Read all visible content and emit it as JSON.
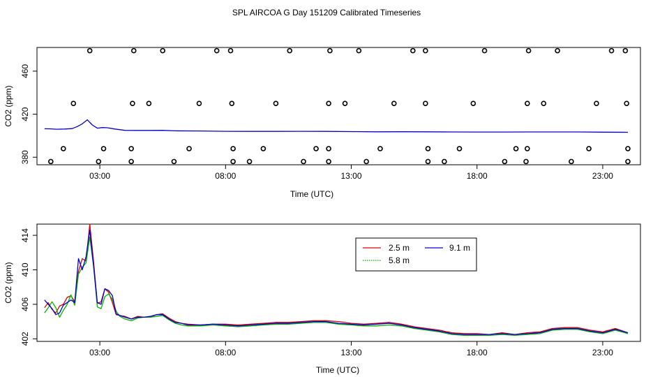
{
  "title": "SPL AIRCOA G  Day 151209  Calibrated Timeseries",
  "colors": {
    "r2_5": "#e00000",
    "r5_8": "#00b000",
    "r9_1": "#0000d0",
    "axis": "#000000"
  },
  "chart_data": [
    {
      "type": "scatter+line",
      "xlabel": "Time (UTC)",
      "ylabel": "CO2 (ppm)",
      "xlim": [
        0.5,
        24.5
      ],
      "ylim": [
        373,
        482
      ],
      "xticks": [
        3,
        8,
        13,
        18,
        23
      ],
      "xtick_labels": [
        "03:00",
        "08:00",
        "13:00",
        "18:00",
        "23:00"
      ],
      "yticks": [
        380,
        420,
        460
      ],
      "ytick_labels": [
        "380",
        "420",
        "460"
      ],
      "points": [
        {
          "x": 2.6,
          "y": 479
        },
        {
          "x": 4.35,
          "y": 479
        },
        {
          "x": 5.5,
          "y": 479
        },
        {
          "x": 7.65,
          "y": 479
        },
        {
          "x": 8.2,
          "y": 479
        },
        {
          "x": 10.55,
          "y": 479
        },
        {
          "x": 12.15,
          "y": 479
        },
        {
          "x": 13.3,
          "y": 479
        },
        {
          "x": 15.45,
          "y": 479
        },
        {
          "x": 15.95,
          "y": 479
        },
        {
          "x": 18.3,
          "y": 479
        },
        {
          "x": 20.05,
          "y": 479
        },
        {
          "x": 21.2,
          "y": 479
        },
        {
          "x": 23.35,
          "y": 479
        },
        {
          "x": 23.9,
          "y": 479
        },
        {
          "x": 1.95,
          "y": 430
        },
        {
          "x": 4.3,
          "y": 430
        },
        {
          "x": 4.95,
          "y": 430
        },
        {
          "x": 6.95,
          "y": 430
        },
        {
          "x": 8.25,
          "y": 430
        },
        {
          "x": 10.0,
          "y": 430
        },
        {
          "x": 12.1,
          "y": 430
        },
        {
          "x": 12.75,
          "y": 430
        },
        {
          "x": 14.7,
          "y": 430
        },
        {
          "x": 15.95,
          "y": 430
        },
        {
          "x": 17.85,
          "y": 430
        },
        {
          "x": 20.0,
          "y": 430
        },
        {
          "x": 20.65,
          "y": 430
        },
        {
          "x": 22.75,
          "y": 430
        },
        {
          "x": 23.95,
          "y": 430
        },
        {
          "x": 1.55,
          "y": 388
        },
        {
          "x": 3.15,
          "y": 388
        },
        {
          "x": 4.25,
          "y": 388
        },
        {
          "x": 6.55,
          "y": 388
        },
        {
          "x": 8.3,
          "y": 388
        },
        {
          "x": 9.5,
          "y": 388
        },
        {
          "x": 11.6,
          "y": 388
        },
        {
          "x": 12.1,
          "y": 388
        },
        {
          "x": 14.15,
          "y": 388
        },
        {
          "x": 16.05,
          "y": 388
        },
        {
          "x": 17.3,
          "y": 388
        },
        {
          "x": 19.55,
          "y": 388
        },
        {
          "x": 20.0,
          "y": 388
        },
        {
          "x": 22.45,
          "y": 388
        },
        {
          "x": 24.0,
          "y": 388
        },
        {
          "x": 1.05,
          "y": 376
        },
        {
          "x": 2.95,
          "y": 376
        },
        {
          "x": 4.25,
          "y": 376
        },
        {
          "x": 5.95,
          "y": 376
        },
        {
          "x": 8.3,
          "y": 376
        },
        {
          "x": 8.95,
          "y": 376
        },
        {
          "x": 11.1,
          "y": 376
        },
        {
          "x": 12.1,
          "y": 376
        },
        {
          "x": 13.6,
          "y": 376
        },
        {
          "x": 16.05,
          "y": 376
        },
        {
          "x": 16.7,
          "y": 376
        },
        {
          "x": 19.1,
          "y": 376
        },
        {
          "x": 19.95,
          "y": 376
        },
        {
          "x": 21.75,
          "y": 376
        },
        {
          "x": 24.0,
          "y": 376
        }
      ],
      "series_x": [
        0.8,
        1.0,
        1.3,
        1.6,
        1.9,
        2.1,
        2.3,
        2.5,
        2.7,
        2.9,
        3.1,
        3.3,
        3.6,
        4.0,
        4.5,
        5.0,
        5.5,
        6.0,
        7.0,
        8.0,
        9.0,
        10.0,
        11.0,
        12.0,
        13.0,
        14.0,
        15.0,
        16.0,
        17.0,
        18.0,
        19.0,
        20.0,
        21.0,
        22.0,
        23.0,
        24.0
      ],
      "series": [
        {
          "name": "9.1 m",
          "values": [
            406.5,
            406.4,
            406.0,
            406.2,
            406.6,
            408.5,
            411.0,
            414.8,
            410.0,
            407.0,
            407.6,
            407.4,
            406.2,
            405.0,
            404.9,
            404.9,
            405.0,
            404.5,
            404.4,
            404.1,
            404.0,
            404.0,
            404.1,
            404.0,
            403.8,
            403.6,
            403.7,
            403.6,
            403.5,
            403.4,
            403.4,
            403.5,
            403.5,
            403.5,
            403.3,
            403.2
          ]
        }
      ]
    },
    {
      "type": "line",
      "xlabel": "Time (UTC)",
      "ylabel": "CO2 (ppm)",
      "xlim": [
        0.5,
        24.5
      ],
      "ylim": [
        401.7,
        415.3
      ],
      "xticks": [
        3,
        8,
        13,
        18,
        23
      ],
      "xtick_labels": [
        "03:00",
        "08:00",
        "13:00",
        "18:00",
        "23:00"
      ],
      "yticks": [
        402,
        406,
        410,
        414
      ],
      "ytick_labels": [
        "402",
        "406",
        "410",
        "414"
      ],
      "legend": {
        "position": "top-right",
        "entries": [
          "2.5 m",
          "5.8 m",
          "9.1 m"
        ]
      },
      "x": [
        0.8,
        0.95,
        1.1,
        1.25,
        1.4,
        1.55,
        1.7,
        1.85,
        2.0,
        2.15,
        2.3,
        2.45,
        2.6,
        2.75,
        2.9,
        3.05,
        3.2,
        3.35,
        3.5,
        3.65,
        3.8,
        4.0,
        4.25,
        4.5,
        4.75,
        5.0,
        5.25,
        5.5,
        5.75,
        6.0,
        6.25,
        6.5,
        7.0,
        7.5,
        8.0,
        8.5,
        9.0,
        9.5,
        10.0,
        10.5,
        11.0,
        11.5,
        12.0,
        12.5,
        13.0,
        13.5,
        14.0,
        14.5,
        15.0,
        15.5,
        16.0,
        16.5,
        17.0,
        17.5,
        18.0,
        18.5,
        19.0,
        19.5,
        20.0,
        20.5,
        21.0,
        21.5,
        22.0,
        22.5,
        23.0,
        23.5,
        24.0
      ],
      "series": [
        {
          "name": "2.5 m",
          "values": [
            405.6,
            406.2,
            405.4,
            405.0,
            405.8,
            406.0,
            406.8,
            407.0,
            406.3,
            409.8,
            411.3,
            411.0,
            415.3,
            411.0,
            406.1,
            406.3,
            407.8,
            407.4,
            406.2,
            404.8,
            404.7,
            404.6,
            404.3,
            404.6,
            404.5,
            404.5,
            404.8,
            404.9,
            404.4,
            404.0,
            403.8,
            403.7,
            403.6,
            403.7,
            403.7,
            403.6,
            403.7,
            403.8,
            403.9,
            403.9,
            404.0,
            404.1,
            404.1,
            404.0,
            403.8,
            403.7,
            403.8,
            403.9,
            403.7,
            403.4,
            403.2,
            403.0,
            402.7,
            402.6,
            402.6,
            402.5,
            402.7,
            402.5,
            402.7,
            402.8,
            403.2,
            403.3,
            403.3,
            403.0,
            402.8,
            403.2,
            402.7
          ]
        },
        {
          "name": "5.8 m",
          "values": [
            405.0,
            405.6,
            406.3,
            405.6,
            404.5,
            405.3,
            406.0,
            407.1,
            405.9,
            409.5,
            410.3,
            410.8,
            413.8,
            410.4,
            405.7,
            405.5,
            406.9,
            407.2,
            406.6,
            405.2,
            404.6,
            404.3,
            404.1,
            404.4,
            404.5,
            404.5,
            404.6,
            404.7,
            404.2,
            403.8,
            403.6,
            403.5,
            403.5,
            403.6,
            403.5,
            403.4,
            403.5,
            403.6,
            403.7,
            403.7,
            403.8,
            403.9,
            403.9,
            403.7,
            403.6,
            403.5,
            403.5,
            403.6,
            403.5,
            403.2,
            403.0,
            402.8,
            402.5,
            402.4,
            402.4,
            402.4,
            402.5,
            402.4,
            402.5,
            402.6,
            403.0,
            403.1,
            403.1,
            402.8,
            402.6,
            403.0,
            402.6
          ]
        },
        {
          "name": "9.1 m",
          "values": [
            406.5,
            406.0,
            405.5,
            404.8,
            405.0,
            405.9,
            406.2,
            406.5,
            406.2,
            411.3,
            410.0,
            411.5,
            414.6,
            410.5,
            406.2,
            406.0,
            407.8,
            407.6,
            407.0,
            404.9,
            404.7,
            404.5,
            404.3,
            404.5,
            404.5,
            404.6,
            404.8,
            404.8,
            404.3,
            403.9,
            403.8,
            403.6,
            403.6,
            403.7,
            403.6,
            403.5,
            403.6,
            403.7,
            403.8,
            403.8,
            403.9,
            404.0,
            404.0,
            403.8,
            403.7,
            403.6,
            403.7,
            403.8,
            403.6,
            403.3,
            403.1,
            402.9,
            402.6,
            402.5,
            402.5,
            402.5,
            402.6,
            402.5,
            402.6,
            402.7,
            403.1,
            403.2,
            403.2,
            402.9,
            402.7,
            403.1,
            402.7
          ]
        }
      ]
    }
  ]
}
